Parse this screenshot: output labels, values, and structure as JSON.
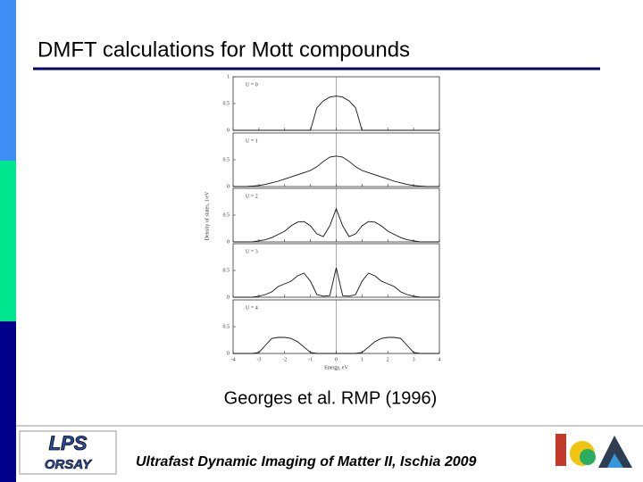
{
  "slide": {
    "title": "DMFT calculations for Mott compounds",
    "citation": "Georges et al. RMP (1996)",
    "footer": "Ultrafast Dynamic Imaging of Matter II, Ischia 2009",
    "logo_left": [
      "LPS",
      "ORSAY"
    ]
  },
  "figure": {
    "ylabel": "Density of states, 1/eV",
    "xlabel": "Energy, eV",
    "xlim": [
      -4,
      4
    ],
    "xticks": [
      -4,
      -3,
      -2,
      -1,
      0,
      1,
      2,
      3,
      4
    ],
    "x": [
      -4,
      -3.75,
      -3.5,
      -3.25,
      -3,
      -2.75,
      -2.5,
      -2.25,
      -2,
      -1.75,
      -1.5,
      -1.25,
      -1,
      -0.75,
      -0.5,
      -0.25,
      0,
      0.25,
      0.5,
      0.75,
      1,
      1.25,
      1.5,
      1.75,
      2,
      2.25,
      2.5,
      2.75,
      3,
      3.25,
      3.5,
      3.75,
      4
    ],
    "panels": [
      {
        "label": "U = 0",
        "ylim": [
          0,
          1
        ],
        "yticks": [
          0,
          0.5,
          1
        ],
        "values": [
          0,
          0,
          0,
          0,
          0,
          0,
          0,
          0,
          0,
          0,
          0,
          0,
          0,
          0.42,
          0.55,
          0.62,
          0.64,
          0.62,
          0.55,
          0.42,
          0,
          0,
          0,
          0,
          0,
          0,
          0,
          0,
          0,
          0,
          0,
          0,
          0
        ]
      },
      {
        "label": "U = 1",
        "ylim": [
          0,
          1
        ],
        "yticks": [
          0,
          0.5
        ],
        "values": [
          0,
          0,
          0,
          0.01,
          0.02,
          0.04,
          0.07,
          0.1,
          0.14,
          0.18,
          0.22,
          0.26,
          0.3,
          0.37,
          0.47,
          0.55,
          0.57,
          0.55,
          0.47,
          0.37,
          0.3,
          0.26,
          0.22,
          0.18,
          0.14,
          0.1,
          0.07,
          0.04,
          0.02,
          0.01,
          0,
          0,
          0
        ]
      },
      {
        "label": "U = 2",
        "ylim": [
          0,
          1
        ],
        "yticks": [
          0,
          0.5
        ],
        "values": [
          0,
          0,
          0,
          0,
          0.02,
          0.04,
          0.08,
          0.14,
          0.2,
          0.3,
          0.37,
          0.38,
          0.3,
          0.15,
          0.1,
          0.3,
          0.62,
          0.3,
          0.1,
          0.15,
          0.3,
          0.38,
          0.37,
          0.3,
          0.2,
          0.14,
          0.08,
          0.04,
          0.02,
          0,
          0,
          0,
          0
        ]
      },
      {
        "label": "U = 3",
        "ylim": [
          0,
          1
        ],
        "yticks": [
          0,
          0.5
        ],
        "values": [
          0,
          0,
          0,
          0,
          0.02,
          0.05,
          0.1,
          0.2,
          0.25,
          0.3,
          0.4,
          0.45,
          0.3,
          0.05,
          0.02,
          0.03,
          0.55,
          0.03,
          0.02,
          0.05,
          0.3,
          0.45,
          0.4,
          0.3,
          0.25,
          0.2,
          0.1,
          0.05,
          0.02,
          0,
          0,
          0,
          0
        ]
      },
      {
        "label": "U = 4",
        "ylim": [
          0,
          1
        ],
        "yticks": [
          0,
          0.5
        ],
        "values": [
          0,
          0,
          0,
          0,
          0.02,
          0.15,
          0.28,
          0.3,
          0.3,
          0.28,
          0.22,
          0.12,
          0.02,
          0,
          0,
          0,
          0,
          0,
          0,
          0,
          0.02,
          0.12,
          0.22,
          0.28,
          0.3,
          0.3,
          0.28,
          0.15,
          0.02,
          0,
          0,
          0,
          0
        ]
      }
    ]
  }
}
